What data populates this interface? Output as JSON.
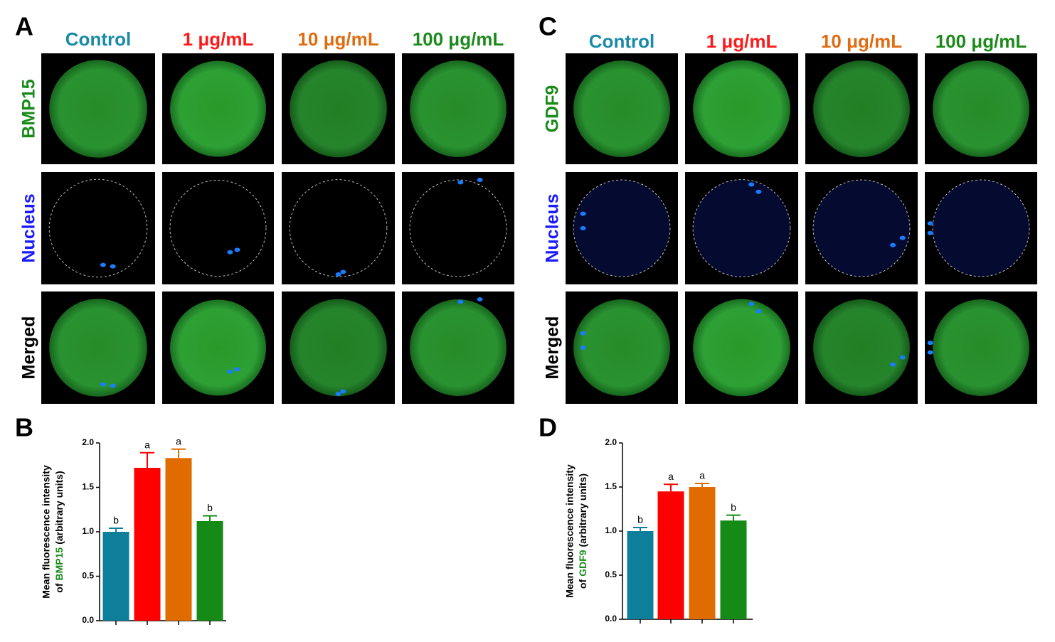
{
  "panels": [
    {
      "letter": "A",
      "columns": [
        "Control",
        "1 μg/mL",
        "10 μg/mL",
        "100 μg/mL"
      ],
      "column_colors": [
        "#1a8aa6",
        "#ff1a1a",
        "#e06c10",
        "#1a8a1a"
      ],
      "rows": [
        "BMP15",
        "Nucleus",
        "Merged"
      ],
      "row_colors": [
        "#1a8a1a",
        "#1a1aff",
        "#000000"
      ]
    },
    {
      "letter": "C",
      "columns": [
        "Control",
        "1 μg/mL",
        "10 μg/mL",
        "100 μg/mL"
      ],
      "column_colors": [
        "#1a8aa6",
        "#ff1a1a",
        "#e06c10",
        "#1a8a1a"
      ],
      "rows": [
        "GDF9",
        "Nucleus",
        "Merged"
      ],
      "row_colors": [
        "#1a8a1a",
        "#1a1aff",
        "#000000"
      ]
    }
  ],
  "chart_data": [
    {
      "type": "bar",
      "panel_label": "B",
      "ylabel": [
        "Mean fluorescence intensity",
        "of",
        "BMP15",
        "(arbitrary units)"
      ],
      "ylabel_colors": [
        "#000000",
        "#000000",
        "#1a8a1a",
        "#000000"
      ],
      "categories": [
        null,
        null,
        null,
        null
      ],
      "values": [
        1.0,
        1.72,
        1.83,
        1.12
      ],
      "errors": [
        0.04,
        0.17,
        0.1,
        0.06
      ],
      "annotations": [
        "b",
        "a",
        "a",
        "b"
      ],
      "colors": [
        "#0e7f9b",
        "#ff0000",
        "#e06c00",
        "#168a16"
      ],
      "ylim": [
        0,
        2
      ],
      "yticks": [
        {
          "value": 0,
          "label": "0.0"
        },
        0.5,
        {
          "value": 1,
          "label": "1.0"
        },
        1.5,
        {
          "value": 2,
          "label": "2.0"
        }
      ]
    },
    {
      "type": "bar",
      "panel_label": "D",
      "ylabel": [
        "Mean fluorescence intensity",
        "of",
        "GDF9",
        "(arbitrary units)"
      ],
      "ylabel_colors": [
        "#000000",
        "#000000",
        "#1a8a1a",
        "#000000"
      ],
      "categories": [
        null,
        null,
        null,
        null
      ],
      "values": [
        1.0,
        1.45,
        1.5,
        1.12
      ],
      "errors": [
        0.04,
        0.08,
        0.04,
        0.06
      ],
      "annotations": [
        "b",
        "a",
        "a",
        "b"
      ],
      "colors": [
        "#0e7f9b",
        "#ff0000",
        "#e06c00",
        "#168a16"
      ],
      "ylim": [
        0,
        2
      ],
      "yticks": [
        {
          "value": 0,
          "label": "0.0"
        },
        0.5,
        {
          "value": 1,
          "label": "1.0"
        },
        1.5,
        {
          "value": 2,
          "label": "2.0"
        }
      ]
    }
  ]
}
